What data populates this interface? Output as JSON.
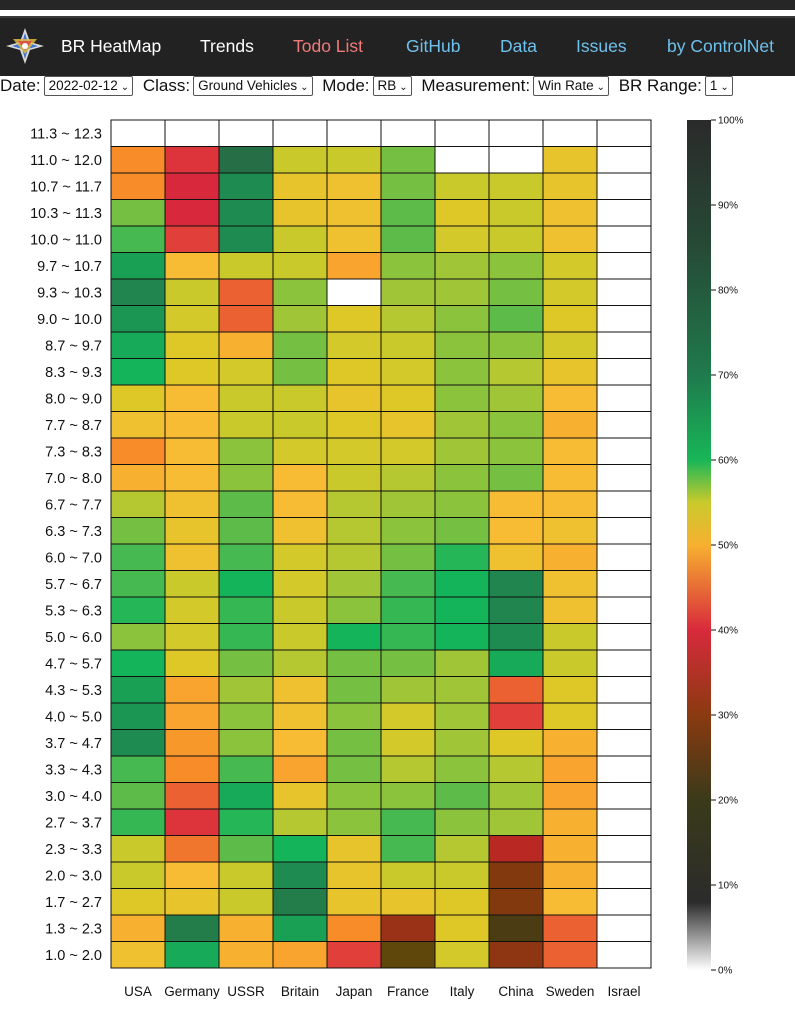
{
  "nav": {
    "items": [
      {
        "label": "BR HeatMap",
        "color": "#ffffff"
      },
      {
        "label": "Trends",
        "color": "#ffffff"
      },
      {
        "label": "Todo List",
        "color": "#f07a7a"
      },
      {
        "label": "GitHub",
        "color": "#6ec1ec"
      },
      {
        "label": "Data",
        "color": "#6ec1ec"
      },
      {
        "label": "Issues",
        "color": "#6ec1ec"
      },
      {
        "label": "by ControlNet",
        "color": "#6ec1ec"
      }
    ]
  },
  "controls": {
    "date_label": "Date:",
    "date_value": "2022-02-12",
    "class_label": "Class:",
    "class_value": "Ground Vehicles",
    "mode_label": "Mode:",
    "mode_value": "RB",
    "measurement_label": "Measurement:",
    "measurement_value": "Win Rate",
    "br_range_label": "BR Range:",
    "br_range_value": "1"
  },
  "chart_data": {
    "type": "heatmap",
    "columns": [
      "USA",
      "Germany",
      "USSR",
      "Britain",
      "Japan",
      "France",
      "Italy",
      "China",
      "Sweden",
      "Israel"
    ],
    "rows": [
      "11.3 ~ 12.3",
      "11.0 ~ 12.0",
      "10.7 ~ 11.7",
      "10.3 ~ 11.3",
      "10.0 ~ 11.0",
      "9.7 ~ 10.7",
      "9.3 ~ 10.3",
      "9.0 ~ 10.0",
      "8.7 ~ 9.7",
      "8.3 ~ 9.3",
      "8.0 ~ 9.0",
      "7.7 ~ 8.7",
      "7.3 ~ 8.3",
      "7.0 ~ 8.0",
      "6.7 ~ 7.7",
      "6.3 ~ 7.3",
      "6.0 ~ 7.0",
      "5.7 ~ 6.7",
      "5.3 ~ 6.3",
      "5.0 ~ 6.0",
      "4.7 ~ 5.7",
      "4.3 ~ 5.3",
      "4.0 ~ 5.0",
      "3.7 ~ 4.7",
      "3.3 ~ 4.3",
      "3.0 ~ 4.0",
      "2.7 ~ 3.7",
      "2.3 ~ 3.3",
      "2.0 ~ 3.0",
      "1.7 ~ 2.7",
      "1.3 ~ 2.3",
      "1.0 ~ 2.0"
    ],
    "values": [
      [
        null,
        null,
        null,
        null,
        null,
        null,
        null,
        null,
        null,
        null
      ],
      [
        46,
        41,
        72,
        55,
        55,
        59,
        null,
        null,
        52,
        null
      ],
      [
        46,
        40,
        68,
        52,
        51,
        59,
        55,
        55,
        52,
        null
      ],
      [
        59,
        40,
        68,
        52,
        51,
        60,
        53,
        55,
        51,
        null
      ],
      [
        61,
        42,
        68,
        55,
        51,
        60,
        54,
        55,
        51,
        null
      ],
      [
        66,
        50,
        55,
        55,
        48,
        58,
        57,
        58,
        54,
        null
      ],
      [
        69,
        55,
        44,
        58,
        null,
        57,
        57,
        59,
        54,
        null
      ],
      [
        67,
        54,
        44,
        57,
        53,
        56,
        58,
        60,
        53,
        null
      ],
      [
        65,
        53,
        49,
        59,
        54,
        55,
        58,
        58,
        54,
        null
      ],
      [
        64,
        53,
        54,
        59,
        53,
        54,
        58,
        56,
        52,
        null
      ],
      [
        53,
        50,
        55,
        55,
        52,
        53,
        58,
        57,
        50,
        null
      ],
      [
        51,
        50,
        55,
        55,
        53,
        52,
        57,
        58,
        49,
        null
      ],
      [
        46,
        50,
        58,
        54,
        54,
        54,
        57,
        58,
        50,
        null
      ],
      [
        49,
        50,
        58,
        50,
        55,
        56,
        58,
        59,
        50,
        null
      ],
      [
        56,
        51,
        60,
        50,
        56,
        57,
        58,
        50,
        50,
        null
      ],
      [
        59,
        52,
        60,
        51,
        56,
        58,
        59,
        50,
        51,
        null
      ],
      [
        61,
        51,
        61,
        54,
        56,
        59,
        63,
        51,
        49,
        null
      ],
      [
        61,
        55,
        64,
        54,
        57,
        61,
        64,
        69,
        51,
        null
      ],
      [
        63,
        54,
        62,
        55,
        58,
        62,
        64,
        69,
        51,
        null
      ],
      [
        58,
        54,
        62,
        55,
        64,
        62,
        64,
        68,
        55,
        null
      ],
      [
        64,
        53,
        59,
        56,
        59,
        59,
        57,
        65,
        55,
        null
      ],
      [
        66,
        48,
        57,
        51,
        59,
        57,
        57,
        44,
        53,
        null
      ],
      [
        67,
        48,
        58,
        51,
        58,
        54,
        57,
        42,
        53,
        null
      ],
      [
        68,
        47,
        58,
        50,
        59,
        54,
        57,
        53,
        49,
        null
      ],
      [
        61,
        46,
        61,
        48,
        59,
        56,
        58,
        56,
        48,
        null
      ],
      [
        60,
        44,
        65,
        52,
        58,
        58,
        60,
        57,
        48,
        null
      ],
      [
        62,
        41,
        63,
        56,
        58,
        61,
        58,
        57,
        49,
        null
      ],
      [
        55,
        45,
        60,
        64,
        52,
        61,
        56,
        36,
        49,
        null
      ],
      [
        55,
        50,
        55,
        68,
        52,
        55,
        55,
        31,
        49,
        null
      ],
      [
        53,
        52,
        55,
        70,
        52,
        52,
        53,
        31,
        50,
        null
      ],
      [
        49,
        70,
        49,
        66,
        46,
        33,
        53,
        22,
        44,
        null
      ],
      [
        51,
        65,
        49,
        48,
        42,
        20,
        54,
        32,
        44,
        null
      ]
    ],
    "colorbar": {
      "label_ticks": [
        "100%",
        "90%",
        "80%",
        "70%",
        "60%",
        "50%",
        "40%",
        "30%",
        "20%",
        "10%",
        "0%"
      ],
      "range": [
        0,
        100
      ]
    }
  }
}
